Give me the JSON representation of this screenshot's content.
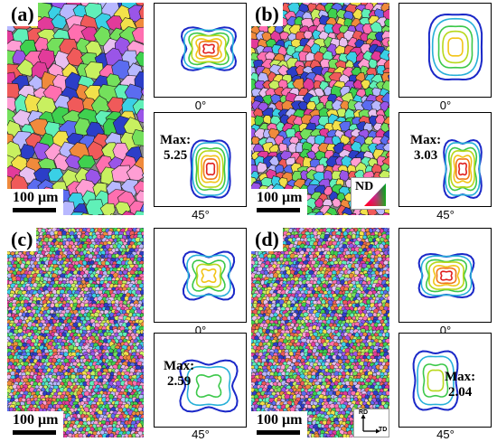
{
  "panels": [
    {
      "label": "(a)",
      "scale": "100 μm",
      "angle_top": "0°",
      "angle_bottom": "45°",
      "max": "Max:\n5.25"
    },
    {
      "label": "(b)",
      "scale": "100 μm",
      "angle_top": "0°",
      "angle_bottom": "45°",
      "max": "Max:\n3.03"
    },
    {
      "label": "(c)",
      "scale": "100 μm",
      "angle_top": "0°",
      "angle_bottom": "45°",
      "max": "Max:\n2.59"
    },
    {
      "label": "(d)",
      "scale": "100 μm",
      "angle_top": "0°",
      "angle_bottom": "45°",
      "max": "Max:\n2.04"
    }
  ],
  "legend": {
    "nd": "ND",
    "rd": "RD",
    "td": "TD"
  },
  "palette": [
    "#e23b9a",
    "#3fd14f",
    "#5b6cf0",
    "#f2e14a",
    "#3ad0e6",
    "#f08a3c",
    "#9a55e8",
    "#c8f060",
    "#f05a5a",
    "#60f0b8",
    "#b8b8ff",
    "#ff9ed4",
    "#2c3ec8",
    "#74e05c",
    "#e8c0f0",
    "#ff6fb0"
  ],
  "contour_colors": [
    "#1a28c8",
    "#27b0d8",
    "#3cc84a",
    "#b8d81c",
    "#f2c417",
    "#f07818",
    "#e02020"
  ]
}
